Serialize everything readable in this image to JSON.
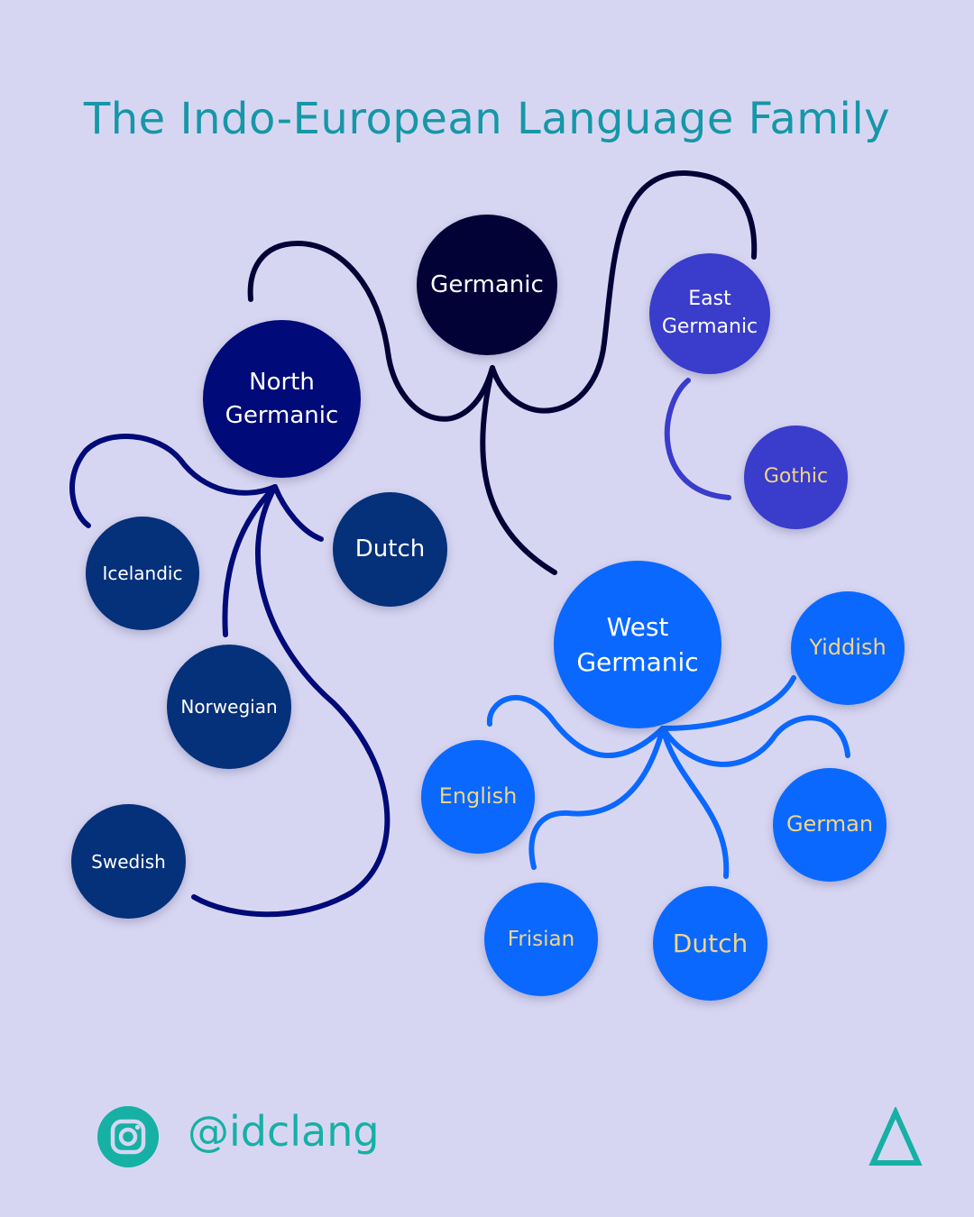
{
  "title": "The Indo-European Language Family",
  "colors": {
    "background": "#d7d6f2",
    "title": "#1697a8",
    "accent": "#16b0a4",
    "germanic": "#020236",
    "north_germanic": "#000a78",
    "north_leaves": "#05307a",
    "east_germanic": "#3a3ccc",
    "west_germanic": "#0a68ff",
    "label_light": "#ffffff",
    "label_gold": "#f0d58a"
  },
  "nodes": {
    "germanic": "Germanic",
    "north_germanic": "North\nGermanic",
    "east_germanic": "East\nGermanic",
    "west_germanic": "West\nGermanic",
    "icelandic": "Icelandic",
    "norwegian": "Norwegian",
    "swedish": "Swedish",
    "dutch_north": "Dutch",
    "gothic": "Gothic",
    "english": "English",
    "frisian": "Frisian",
    "dutch_west": "Dutch",
    "german": "German",
    "yiddish": "Yiddish"
  },
  "footer": {
    "handle": "@idclang",
    "instagram_icon": "instagram-icon",
    "logo_icon": "delta-logo-icon"
  }
}
